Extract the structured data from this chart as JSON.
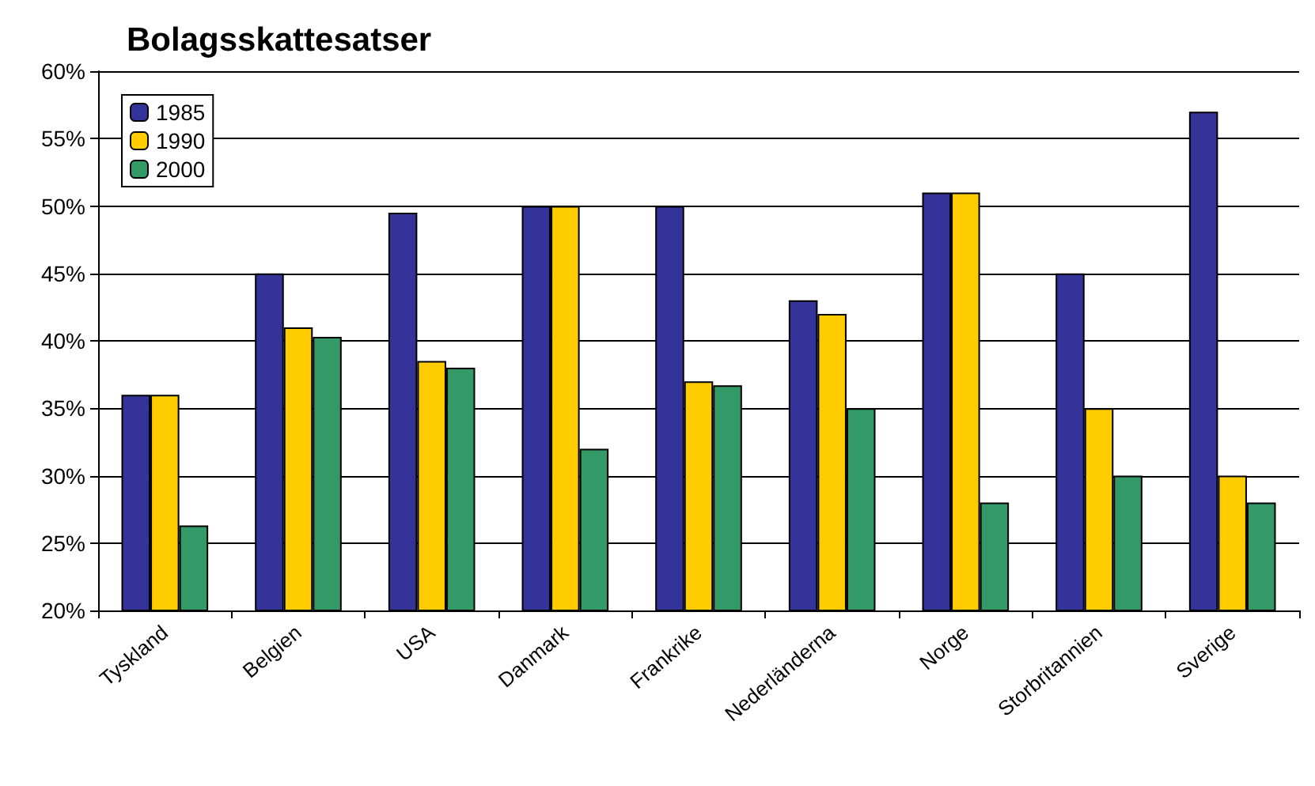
{
  "chart_data": {
    "type": "bar",
    "title": "Bolagsskattesatser",
    "categories": [
      "Tyskland",
      "Belgien",
      "USA",
      "Danmark",
      "Frankrike",
      "Nederländerna",
      "Norge",
      "Storbritannien",
      "Sverige"
    ],
    "series": [
      {
        "name": "1985",
        "color": "#333399",
        "values": [
          36,
          45,
          49.5,
          50,
          50,
          43,
          51,
          45,
          57
        ]
      },
      {
        "name": "1990",
        "color": "#ffcc00",
        "values": [
          36,
          41,
          38.5,
          50,
          37,
          42,
          51,
          35,
          30
        ]
      },
      {
        "name": "2000",
        "color": "#339966",
        "values": [
          26.3,
          40.3,
          38,
          32,
          36.7,
          35,
          28,
          30,
          28
        ]
      }
    ],
    "ylim": [
      20,
      60
    ],
    "yticks": [
      {
        "value": 20,
        "label": "20%"
      },
      {
        "value": 25,
        "label": "25%"
      },
      {
        "value": 30,
        "label": "30%"
      },
      {
        "value": 35,
        "label": "35%"
      },
      {
        "value": 40,
        "label": "40%"
      },
      {
        "value": 45,
        "label": "45%"
      },
      {
        "value": 50,
        "label": "50%"
      },
      {
        "value": 55,
        "label": "55%"
      },
      {
        "value": 60,
        "label": "60%"
      }
    ],
    "grid": "y",
    "legend": "top left"
  }
}
